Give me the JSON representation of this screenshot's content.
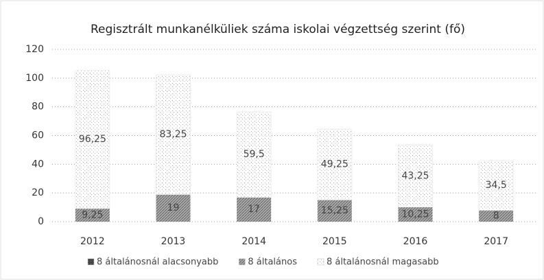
{
  "chart_data": {
    "type": "stacked_bar",
    "title": "Regisztrált munkanélküliek száma iskolai végzettség szerint (fő)",
    "categories": [
      "2012",
      "2013",
      "2014",
      "2015",
      "2016",
      "2017"
    ],
    "series": [
      {
        "name": "8 általánosnál alacsonyabb",
        "color": "#555555",
        "values": [
          0,
          0,
          0,
          0,
          0,
          0
        ]
      },
      {
        "name": "8 általános",
        "color": "#8a8a8a",
        "values": [
          9.25,
          19,
          17,
          15.25,
          10.25,
          8
        ],
        "value_labels": [
          "9,25",
          "19",
          "17",
          "15,25",
          "10,25",
          "8"
        ]
      },
      {
        "name": "8 általánosnál magasabb",
        "color": "#d8d8d8",
        "values": [
          96.25,
          83.25,
          59.5,
          49.25,
          43.25,
          34.5
        ],
        "value_labels": [
          "96,25",
          "83,25",
          "59,5",
          "49,25",
          "43,25",
          "34,5"
        ]
      }
    ],
    "ylim": [
      0,
      120
    ],
    "yticks": [
      0,
      20,
      40,
      60,
      80,
      100,
      120
    ],
    "grid": true,
    "legend": "bottom"
  }
}
